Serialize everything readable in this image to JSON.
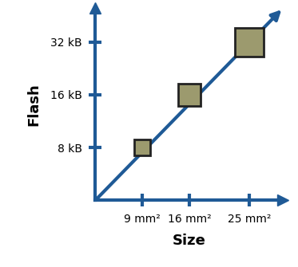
{
  "chart_data": {
    "type": "scatter",
    "x_label": "Size",
    "y_label": "Flash",
    "x": [
      9,
      16,
      25
    ],
    "values": [
      8,
      16,
      32
    ],
    "color": "#9c9a6e",
    "marker": "s",
    "log": "y",
    "xlim": [
      2,
      30
    ],
    "ylim": [
      4,
      50
    ],
    "xticks": [
      {
        "value": 9,
        "label": "9 mm²"
      },
      {
        "value": 16,
        "label": "16 mm²"
      },
      {
        "value": 25,
        "label": "25 mm²"
      }
    ],
    "yticks": [
      {
        "value": 8,
        "label": "8 kB"
      },
      {
        "value": 16,
        "label": "16 kB"
      },
      {
        "value": 32,
        "label": "32 kB"
      }
    ]
  }
}
